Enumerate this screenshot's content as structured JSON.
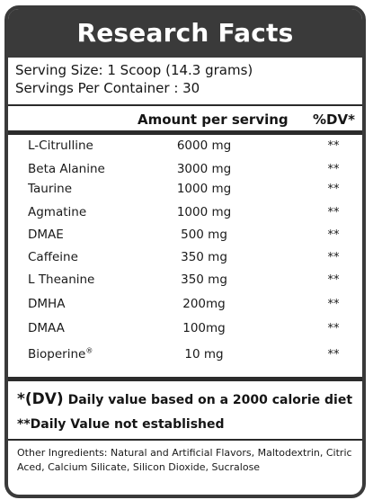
{
  "header": {
    "title": "Research Facts"
  },
  "serving": {
    "size": "Serving Size: 1 Scoop (14.3 grams)",
    "per_container": "Servings Per Container : 30"
  },
  "columns": {
    "amount": "Amount per serving",
    "dv": "%DV*"
  },
  "nutrients": [
    {
      "name": "L-Citrulline",
      "amount": "6000 mg",
      "dv": "**"
    },
    {
      "name": "Beta Alanine",
      "amount": "3000 mg",
      "dv": "**"
    },
    {
      "name": "Taurine",
      "amount": "1000 mg",
      "dv": "**"
    },
    {
      "name": "Agmatine",
      "amount": "1000 mg",
      "dv": "**"
    },
    {
      "name": "DMAE",
      "amount": "500 mg",
      "dv": "**"
    },
    {
      "name": "Caffeine",
      "amount": "350 mg",
      "dv": "**"
    },
    {
      "name": "L Theanine",
      "amount": "350 mg",
      "dv": "**"
    },
    {
      "name": "DMHA",
      "amount": "200mg",
      "dv": "**"
    },
    {
      "name": "DMAA",
      "amount": "100mg",
      "dv": "**"
    },
    {
      "name": "Bioperine",
      "name_mark": "®",
      "amount": "10 mg",
      "dv": "**"
    }
  ],
  "footnotes": {
    "dv_prefix": "*(DV)",
    "dv_text": " Daily value based on a 2000 calorie diet",
    "not_established": "**Daily Value not established"
  },
  "other_ingredients": "Other Ingredients: Natural and Artificial Flavors, Maltodextrin, Citric Aced, Calcium Silicate, Silicon Dioxide, Sucralose"
}
